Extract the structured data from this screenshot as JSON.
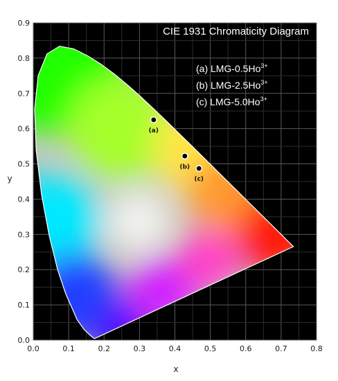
{
  "chart_data": {
    "type": "scatter",
    "title": "CIE 1931 Chromaticity Diagram",
    "xlabel": "x",
    "ylabel": "y",
    "xlim": [
      0.0,
      0.8
    ],
    "ylim": [
      0.0,
      0.9
    ],
    "xticks": [
      "0.0",
      "0.1",
      "0.2",
      "0.3",
      "0.4",
      "0.5",
      "0.6",
      "0.7",
      "0.8"
    ],
    "yticks": [
      "0.0",
      "0.1",
      "0.2",
      "0.3",
      "0.4",
      "0.5",
      "0.6",
      "0.7",
      "0.8",
      "0.9"
    ],
    "grid": true,
    "background": "#000000",
    "legend_position": "top-right",
    "legend": [
      {
        "text": "(a) LMG-0.5Ho",
        "sup": "3+"
      },
      {
        "text": "(b) LMG-2.5Ho",
        "sup": "3+"
      },
      {
        "text": "(c) LMG-5.0Ho",
        "sup": "3+"
      }
    ],
    "points": [
      {
        "label": "(a)",
        "x": 0.34,
        "y": 0.625
      },
      {
        "label": "(b)",
        "x": 0.428,
        "y": 0.522
      },
      {
        "label": "(c)",
        "x": 0.468,
        "y": 0.487
      }
    ],
    "point_color": "#000000",
    "point_edge_color": "#ffffff"
  }
}
